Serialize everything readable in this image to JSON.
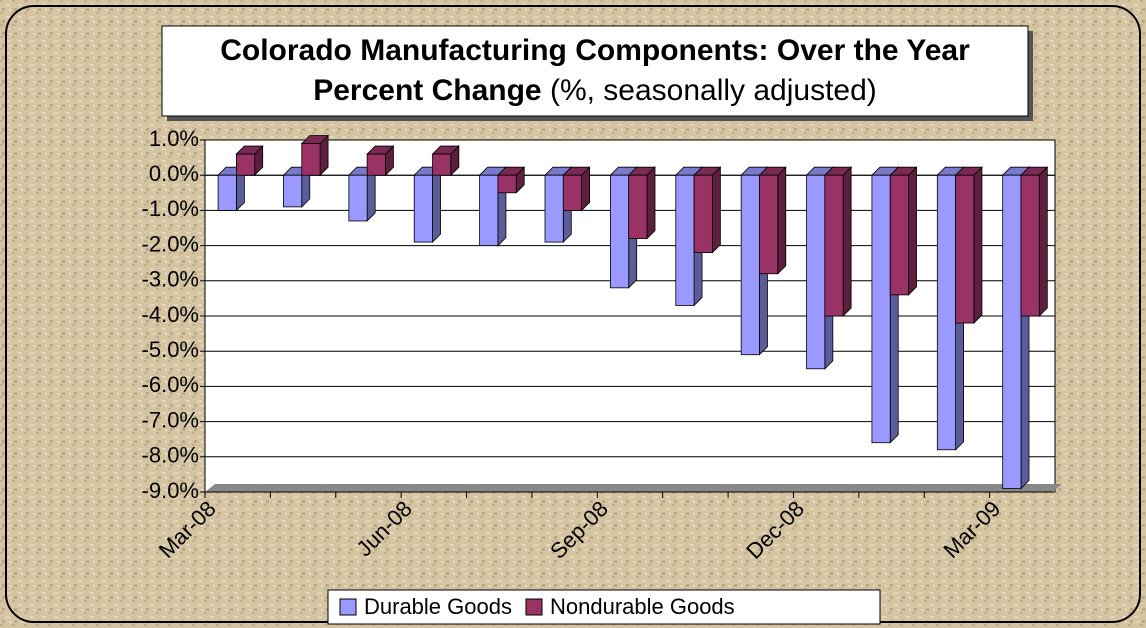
{
  "chart_data": {
    "type": "bar",
    "title": "Colorado Manufacturing Components: Over the Year Percent Change",
    "subtitle": "(%, seasonally adjusted)",
    "categories": [
      "Mar-08",
      null,
      null,
      "Jun-08",
      null,
      null,
      "Sep-08",
      null,
      null,
      "Dec-08",
      null,
      null,
      "Mar-09"
    ],
    "series": [
      {
        "name": "Durable Goods",
        "color": "#9999ff",
        "values": [
          -1.0,
          -0.9,
          -1.3,
          -1.9,
          -2.0,
          -1.9,
          -3.2,
          -3.7,
          -5.1,
          -5.5,
          -7.6,
          -7.8,
          -8.9
        ]
      },
      {
        "name": "Nondurable Goods",
        "color": "#993366",
        "values": [
          0.6,
          0.9,
          0.6,
          0.6,
          -0.5,
          -1.0,
          -1.8,
          -2.2,
          -2.8,
          -4.0,
          -3.4,
          -4.2,
          -4.0
        ]
      }
    ],
    "ylim": [
      -9,
      1
    ],
    "yticks": [
      {
        "value": 1,
        "label": "1.0%"
      },
      {
        "value": 0,
        "label": "0.0%"
      },
      {
        "value": -1,
        "label": "-1.0%"
      },
      {
        "value": -2,
        "label": "-2.0%"
      },
      {
        "value": -3,
        "label": "-3.0%"
      },
      {
        "value": -4,
        "label": "-4.0%"
      },
      {
        "value": -5,
        "label": "-5.0%"
      },
      {
        "value": -6,
        "label": "-6.0%"
      },
      {
        "value": -7,
        "label": "-7.0%"
      },
      {
        "value": -8,
        "label": "-8.0%"
      },
      {
        "value": -9,
        "label": "-9.0%"
      }
    ],
    "grid": true,
    "legend": "bottom"
  }
}
